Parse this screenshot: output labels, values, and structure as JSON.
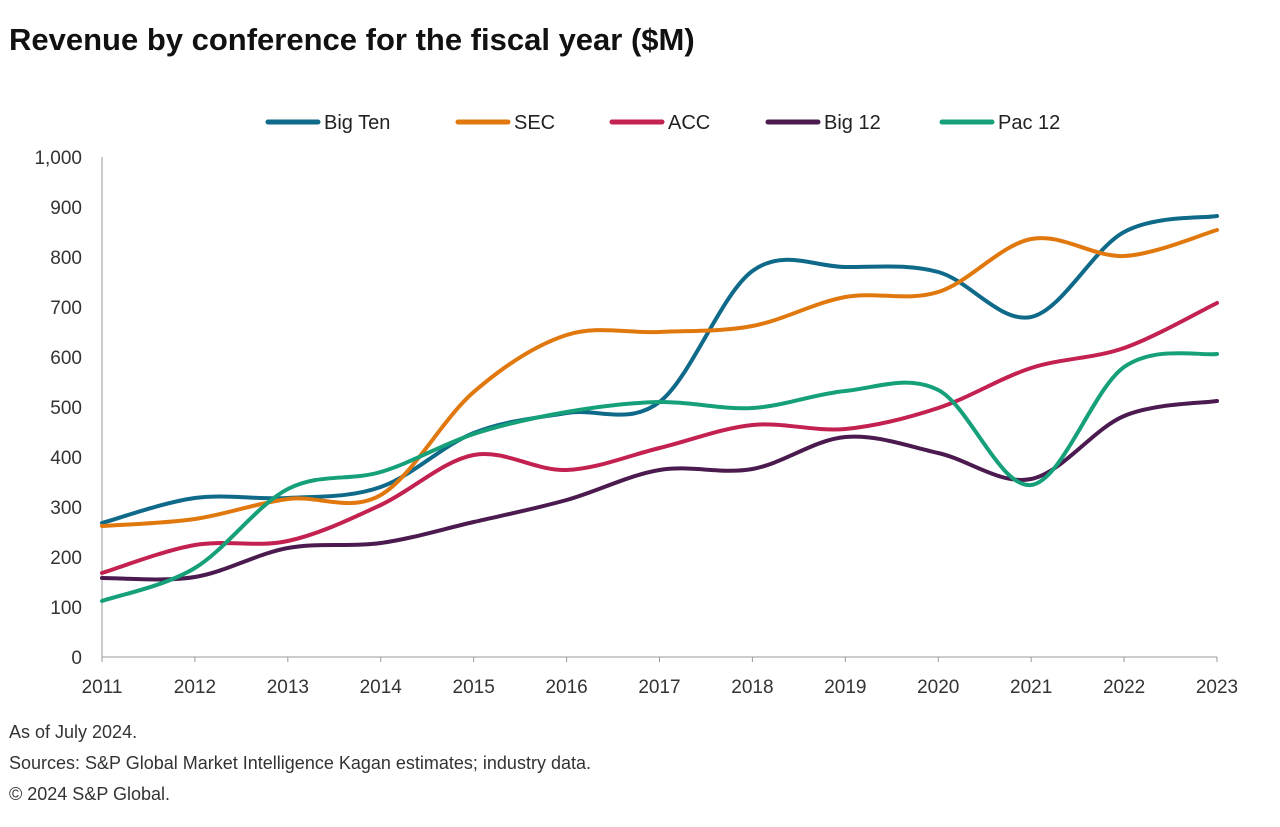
{
  "chart_data": {
    "type": "line",
    "title": "Revenue by conference for the fiscal year ($M)",
    "xlabel": "",
    "ylabel": "",
    "x": [
      2011,
      2012,
      2013,
      2014,
      2015,
      2016,
      2017,
      2018,
      2019,
      2020,
      2021,
      2022,
      2023
    ],
    "ylim": [
      0,
      1000
    ],
    "yticks": [
      0,
      100,
      200,
      300,
      400,
      500,
      600,
      700,
      800,
      900,
      1000
    ],
    "ytick_labels": [
      "0",
      "100",
      "200",
      "300",
      "400",
      "500",
      "600",
      "700",
      "800",
      "900",
      "1,000"
    ],
    "legend_position": "top",
    "grid": false,
    "series": [
      {
        "name": "Big Ten",
        "color": "#0f6a89",
        "values": [
          268,
          318,
          318,
          340,
          448,
          488,
          510,
          772,
          780,
          770,
          680,
          850,
          882
        ]
      },
      {
        "name": "SEC",
        "color": "#e0780e",
        "values": [
          262,
          276,
          316,
          324,
          530,
          644,
          650,
          662,
          720,
          730,
          836,
          802,
          854
        ]
      },
      {
        "name": "ACC",
        "color": "#c3214f",
        "values": [
          168,
          224,
          232,
          304,
          404,
          374,
          418,
          464,
          456,
          498,
          578,
          618,
          708
        ]
      },
      {
        "name": "Big 12",
        "color": "#4b1a4f",
        "values": [
          158,
          160,
          218,
          228,
          270,
          314,
          374,
          376,
          440,
          408,
          356,
          482,
          512
        ]
      },
      {
        "name": "Pac 12",
        "color": "#15a07a",
        "values": [
          112,
          178,
          336,
          370,
          446,
          490,
          510,
          498,
          532,
          534,
          344,
          580,
          606
        ]
      }
    ]
  },
  "footer": {
    "note": "As of July 2024.",
    "sources": "Sources: S&P Global Market Intelligence Kagan estimates; industry data.",
    "copyright": "© 2024 S&P Global."
  }
}
